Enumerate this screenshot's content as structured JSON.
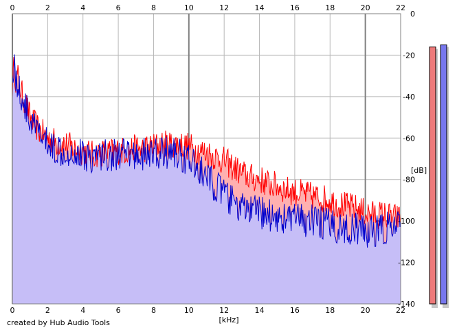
{
  "app": {
    "credit": "created by Hub Audio Tools"
  },
  "chart_data": {
    "type": "area",
    "xlabel": "[kHz]",
    "ylabel": "[dB]",
    "xlim": [
      0,
      22
    ],
    "ylim": [
      -140,
      0
    ],
    "x_ticks": [
      "0",
      "2",
      "4",
      "6",
      "8",
      "10",
      "12",
      "14",
      "16",
      "18",
      "20",
      "22"
    ],
    "y_ticks": [
      "0",
      "-20",
      "-40",
      "-60",
      "-80",
      "-100",
      "-120",
      "-140"
    ],
    "grid": true,
    "series": [
      {
        "color": "#ff0000",
        "fill": "#ffb0b0",
        "x": [
          0,
          0.1,
          0.2,
          0.3,
          0.5,
          0.7,
          1,
          1.5,
          2,
          2.5,
          3,
          3.5,
          4,
          4.5,
          5,
          5.5,
          6,
          6.5,
          7,
          7.5,
          8,
          8.5,
          9,
          9.5,
          10,
          10.5,
          11,
          11.5,
          12,
          12.5,
          13,
          13.5,
          14,
          14.5,
          15,
          15.5,
          16,
          16.5,
          17,
          17.5,
          18,
          18.5,
          19,
          19.5,
          20,
          20.5,
          21,
          21.5,
          22
        ],
        "values": [
          -35,
          -25,
          -32,
          -30,
          -38,
          -42,
          -50,
          -56,
          -60,
          -62,
          -63,
          -65,
          -66,
          -68,
          -67,
          -67,
          -66,
          -66,
          -65,
          -65,
          -64,
          -63,
          -63,
          -63,
          -64,
          -66,
          -67,
          -69,
          -71,
          -74,
          -77,
          -79,
          -80,
          -82,
          -83,
          -85,
          -86,
          -87,
          -88,
          -89,
          -90,
          -92,
          -93,
          -94,
          -96,
          -97,
          -97,
          -98,
          -99
        ]
      },
      {
        "color": "#0000cc",
        "fill": "#c0c0ff",
        "x": [
          0,
          0.1,
          0.2,
          0.3,
          0.5,
          0.7,
          1,
          1.5,
          2,
          2.5,
          3,
          3.5,
          4,
          4.5,
          5,
          5.5,
          6,
          6.5,
          7,
          7.5,
          8,
          8.5,
          9,
          9.5,
          10,
          10.5,
          11,
          11.5,
          12,
          12.5,
          13,
          13.5,
          14,
          14.5,
          15,
          15.5,
          16,
          16.5,
          17,
          17.5,
          18,
          18.5,
          19,
          19.5,
          20,
          20.5,
          21,
          21.5,
          22
        ],
        "values": [
          -30,
          -22,
          -32,
          -35,
          -40,
          -44,
          -52,
          -58,
          -63,
          -65,
          -66,
          -67,
          -68,
          -69,
          -68,
          -68,
          -68,
          -68,
          -68,
          -68,
          -68,
          -67,
          -67,
          -68,
          -71,
          -75,
          -79,
          -83,
          -87,
          -91,
          -94,
          -95,
          -96,
          -97,
          -98,
          -99,
          -99,
          -100,
          -100,
          -101,
          -102,
          -103,
          -104,
          -104,
          -105,
          -105,
          -104,
          -103,
          -103
        ]
      }
    ],
    "meters": [
      {
        "color": "#ee7a7a",
        "level_db": -16
      },
      {
        "color": "#7777ee",
        "level_db": -15
      }
    ]
  }
}
